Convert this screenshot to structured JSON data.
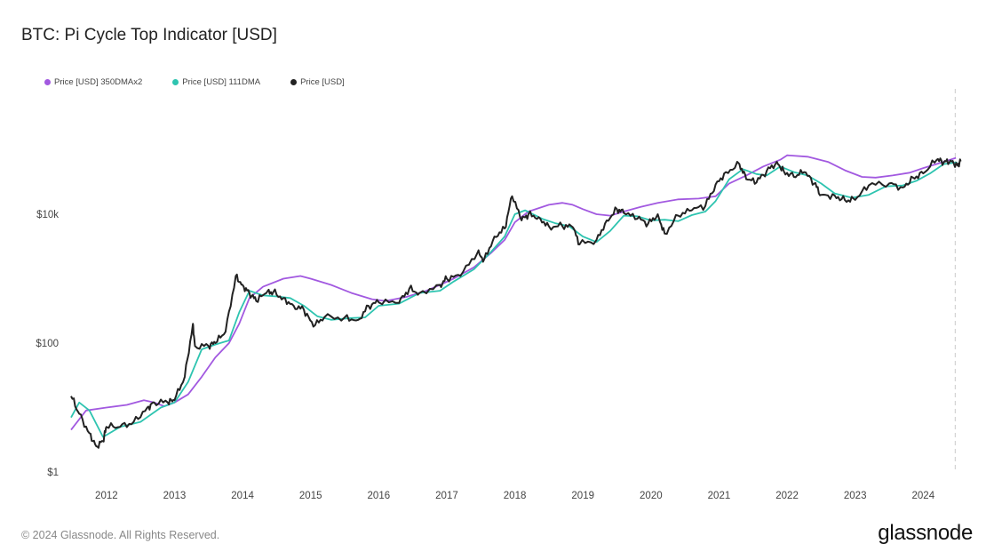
{
  "title": "BTC: Pi Cycle Top Indicator [USD]",
  "footer": "© 2024 Glassnode. All Rights Reserved.",
  "logo": "glassnode",
  "chart_data": {
    "type": "line",
    "title": "BTC: Pi Cycle Top Indicator [USD]",
    "yscale": "log",
    "ylim": [
      1,
      870000
    ],
    "xlim": [
      2011.48,
      2024.57
    ],
    "grid": false,
    "legend_position": "top-left",
    "y_ticks": [
      {
        "value": 1,
        "label": "$1"
      },
      {
        "value": 100,
        "label": "$100"
      },
      {
        "value": 10000,
        "label": "$10k"
      }
    ],
    "x_ticks": [
      {
        "value": 2012,
        "label": "2012"
      },
      {
        "value": 2013,
        "label": "2013"
      },
      {
        "value": 2014,
        "label": "2014"
      },
      {
        "value": 2015,
        "label": "2015"
      },
      {
        "value": 2016,
        "label": "2016"
      },
      {
        "value": 2017,
        "label": "2017"
      },
      {
        "value": 2018,
        "label": "2018"
      },
      {
        "value": 2019,
        "label": "2019"
      },
      {
        "value": 2020,
        "label": "2020"
      },
      {
        "value": 2021,
        "label": "2021"
      },
      {
        "value": 2022,
        "label": "2022"
      },
      {
        "value": 2023,
        "label": "2023"
      },
      {
        "value": 2024,
        "label": "2024"
      }
    ],
    "current_marker": 2024.47,
    "series": [
      {
        "name": "Price [USD] 350DMAx2",
        "color": "#a259e0",
        "x": [
          2011.48,
          2011.7,
          2012.0,
          2012.3,
          2012.55,
          2012.7,
          2012.85,
          2013.0,
          2013.2,
          2013.4,
          2013.6,
          2013.8,
          2013.95,
          2014.1,
          2014.3,
          2014.6,
          2014.85,
          2015.0,
          2015.3,
          2015.6,
          2015.9,
          2016.1,
          2016.4,
          2016.7,
          2016.9,
          2017.1,
          2017.4,
          2017.65,
          2017.85,
          2018.0,
          2018.2,
          2018.5,
          2018.7,
          2018.85,
          2019.0,
          2019.2,
          2019.4,
          2019.6,
          2019.85,
          2020.1,
          2020.4,
          2020.7,
          2020.95,
          2021.15,
          2021.4,
          2021.65,
          2021.9,
          2022.0,
          2022.3,
          2022.6,
          2022.85,
          2023.1,
          2023.3,
          2023.55,
          2023.8,
          2024.0,
          2024.3,
          2024.48
        ],
        "y": [
          4.5,
          9,
          10,
          11,
          13,
          12,
          10.5,
          12,
          16,
          30,
          60,
          100,
          200,
          500,
          750,
          1000,
          1100,
          1000,
          800,
          600,
          480,
          450,
          520,
          650,
          800,
          1000,
          1500,
          2500,
          4000,
          7500,
          11000,
          14000,
          15000,
          14000,
          12000,
          10000,
          9500,
          11000,
          13000,
          15000,
          17000,
          17500,
          19000,
          30000,
          40000,
          55000,
          70000,
          82000,
          78000,
          65000,
          48000,
          38000,
          37000,
          40000,
          44000,
          52000,
          65000,
          75000
        ]
      },
      {
        "name": "Price [USD] 111DMA",
        "color": "#2ec4b0",
        "x": [
          2011.48,
          2011.6,
          2011.75,
          2011.95,
          2012.2,
          2012.5,
          2012.8,
          2013.0,
          2013.2,
          2013.4,
          2013.6,
          2013.8,
          2013.95,
          2014.1,
          2014.3,
          2014.5,
          2014.7,
          2014.9,
          2015.1,
          2015.3,
          2015.6,
          2015.8,
          2016.0,
          2016.3,
          2016.6,
          2016.9,
          2017.1,
          2017.4,
          2017.65,
          2017.85,
          2018.0,
          2018.15,
          2018.4,
          2018.6,
          2018.8,
          2019.0,
          2019.2,
          2019.4,
          2019.6,
          2019.8,
          2020.0,
          2020.2,
          2020.4,
          2020.6,
          2020.8,
          2020.95,
          2021.15,
          2021.35,
          2021.55,
          2021.7,
          2021.9,
          2022.1,
          2022.3,
          2022.5,
          2022.7,
          2022.95,
          2023.2,
          2023.45,
          2023.7,
          2023.9,
          2024.1,
          2024.3,
          2024.5
        ],
        "y": [
          7,
          12,
          9,
          3.5,
          5,
          6,
          10,
          12,
          25,
          80,
          95,
          110,
          300,
          650,
          550,
          530,
          500,
          380,
          260,
          230,
          245,
          250,
          380,
          410,
          600,
          650,
          900,
          1400,
          2600,
          4500,
          10000,
          11500,
          8500,
          7200,
          6500,
          4500,
          3700,
          5500,
          9500,
          9300,
          8000,
          8200,
          7800,
          9700,
          11000,
          16000,
          35000,
          50000,
          42000,
          40000,
          55000,
          45000,
          40000,
          30000,
          21000,
          18000,
          20000,
          27000,
          28000,
          33000,
          43000,
          60000,
          64000
        ]
      },
      {
        "name": "Price [USD]",
        "color": "#222222",
        "x": [
          2011.48,
          2011.6,
          2011.75,
          2011.85,
          2011.95,
          2012.0,
          2012.2,
          2012.4,
          2012.6,
          2012.7,
          2012.9,
          2013.0,
          2013.15,
          2013.27,
          2013.3,
          2013.5,
          2013.6,
          2013.75,
          2013.9,
          2014.0,
          2014.1,
          2014.2,
          2014.35,
          2014.45,
          2014.6,
          2014.75,
          2014.9,
          2015.04,
          2015.2,
          2015.5,
          2015.7,
          2015.85,
          2016.0,
          2016.3,
          2016.45,
          2016.6,
          2016.9,
          2017.0,
          2017.2,
          2017.45,
          2017.55,
          2017.7,
          2017.85,
          2017.96,
          2018.1,
          2018.2,
          2018.35,
          2018.5,
          2018.7,
          2018.85,
          2018.95,
          2019.2,
          2019.35,
          2019.5,
          2019.6,
          2019.8,
          2019.96,
          2020.1,
          2020.2,
          2020.4,
          2020.6,
          2020.8,
          2020.95,
          2021.1,
          2021.3,
          2021.4,
          2021.55,
          2021.7,
          2021.85,
          2021.95,
          2022.1,
          2022.25,
          2022.4,
          2022.5,
          2022.7,
          2022.85,
          2023.0,
          2023.2,
          2023.5,
          2023.7,
          2023.85,
          2024.0,
          2024.2,
          2024.3,
          2024.4,
          2024.5,
          2024.55
        ],
        "y": [
          15,
          8,
          4,
          2.5,
          3,
          5,
          5,
          6,
          10,
          12,
          12,
          13,
          30,
          200,
          90,
          90,
          100,
          150,
          1100,
          800,
          600,
          450,
          600,
          620,
          500,
          380,
          330,
          180,
          250,
          250,
          230,
          380,
          430,
          420,
          700,
          600,
          800,
          1000,
          1100,
          2500,
          2000,
          4500,
          6000,
          19000,
          8000,
          10000,
          9000,
          6500,
          6500,
          6300,
          3400,
          4000,
          8000,
          12000,
          10500,
          8500,
          7200,
          10000,
          5000,
          9500,
          11500,
          13500,
          29000,
          45000,
          60000,
          35000,
          31000,
          47000,
          65000,
          47000,
          38000,
          45000,
          30000,
          20000,
          19500,
          16500,
          16700,
          28000,
          30000,
          26000,
          37000,
          43000,
          70000,
          63000,
          68000,
          58000,
          66000
        ]
      }
    ]
  }
}
